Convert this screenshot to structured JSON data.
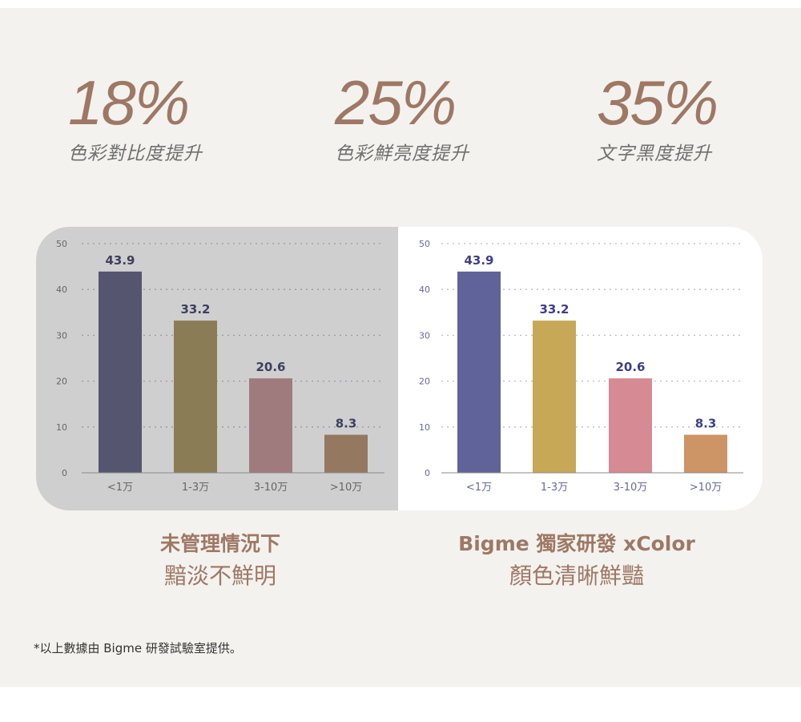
{
  "stats": [
    {
      "value": "18%",
      "label": "色彩對比度提升"
    },
    {
      "value": "25%",
      "label": "色彩鮮亮度提升"
    },
    {
      "value": "35%",
      "label": "文字黑度提升"
    }
  ],
  "chart_data": [
    {
      "type": "bar",
      "categories": [
        "<1万",
        "1-3万",
        "3-10万",
        ">10万"
      ],
      "values": [
        43.9,
        33.2,
        20.6,
        8.3
      ],
      "value_labels": [
        "43.9",
        "33.2",
        "20.6",
        "8.3"
      ],
      "ylim": [
        0,
        50
      ],
      "yticks": [
        "0",
        "10",
        "20",
        "30",
        "40",
        "50"
      ],
      "grid": true,
      "colors": [
        "#555570",
        "#8a7c55",
        "#a07b7e",
        "#957860"
      ],
      "label_color": "#3e3f5e",
      "tick_color": "#666666",
      "background": "#cfcfcf"
    },
    {
      "type": "bar",
      "categories": [
        "<1万",
        "1-3万",
        "3-10万",
        ">10万"
      ],
      "values": [
        43.9,
        33.2,
        20.6,
        8.3
      ],
      "value_labels": [
        "43.9",
        "33.2",
        "20.6",
        "8.3"
      ],
      "ylim": [
        0,
        50
      ],
      "yticks": [
        "0",
        "10",
        "20",
        "30",
        "40",
        "50"
      ],
      "grid": true,
      "colors": [
        "#5f639a",
        "#c6a856",
        "#d68a93",
        "#cd9465"
      ],
      "label_color": "#3d3f86",
      "tick_color": "#6668a0",
      "background": "#ffffff"
    }
  ],
  "captions": [
    {
      "line1": "未管理情況下",
      "line2": "黯淡不鮮明"
    },
    {
      "line1": "Bigme 獨家研發 xColor",
      "line2": "顏色清晰鮮豔"
    }
  ],
  "footnote": "*以上數據由 Bigme 研發試驗室提供。"
}
